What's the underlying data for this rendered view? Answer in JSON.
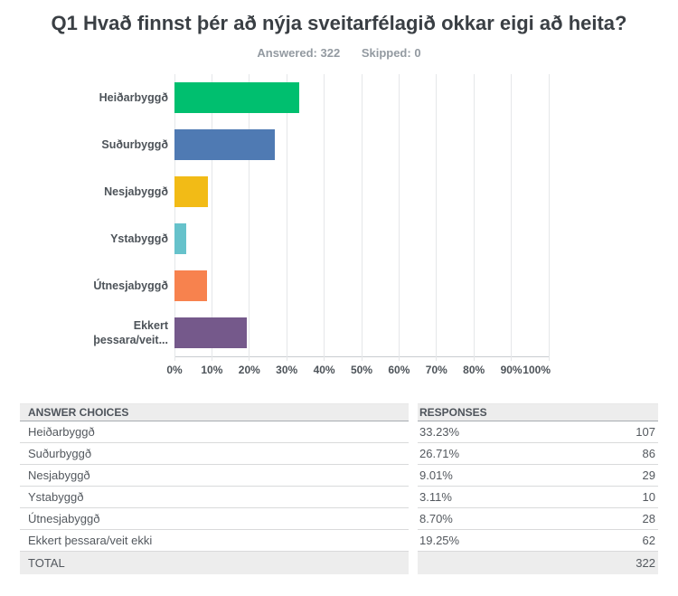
{
  "page": {
    "title": "Q1 Hvað finnst þér að nýja sveitarfélagið okkar eigi að heita?",
    "answered": "Answered: 322",
    "skipped": "Skipped: 0"
  },
  "chart_data": {
    "type": "bar",
    "orientation": "horizontal",
    "categories": [
      "Heiðarbyggð",
      "Suðurbyggð",
      "Nesjabyggð",
      "Ystabyggð",
      "Útnesjabyggð",
      "Ekkert\nþessara/veit..."
    ],
    "values": [
      33.23,
      26.71,
      9.01,
      3.11,
      8.7,
      19.25
    ],
    "value_unit": "%",
    "colors": [
      "#00bf6f",
      "#4f7ab3",
      "#f2bb16",
      "#66c2cb",
      "#f7824e",
      "#75598b"
    ],
    "xlim": [
      0,
      100
    ],
    "x_tick_labels": [
      "0%",
      "10%",
      "20%",
      "30%",
      "40%",
      "50%",
      "60%",
      "70%",
      "80%",
      "90%",
      "100%"
    ],
    "grid": true,
    "legend": false,
    "title": ""
  },
  "table": {
    "headers": [
      "ANSWER CHOICES",
      "RESPONSES"
    ],
    "rows": [
      {
        "choice": "Heiðarbyggð",
        "percent": "33.23%",
        "count": "107"
      },
      {
        "choice": "Suðurbyggð",
        "percent": "26.71%",
        "count": "86"
      },
      {
        "choice": "Nesjabyggð",
        "percent": "9.01%",
        "count": "29"
      },
      {
        "choice": "Ystabyggð",
        "percent": "3.11%",
        "count": "10"
      },
      {
        "choice": "Útnesjabyggð",
        "percent": "8.70%",
        "count": "28"
      },
      {
        "choice": "Ekkert þessara/veit ekki",
        "percent": "19.25%",
        "count": "62"
      }
    ],
    "total_label": "TOTAL",
    "total_value": "322"
  }
}
